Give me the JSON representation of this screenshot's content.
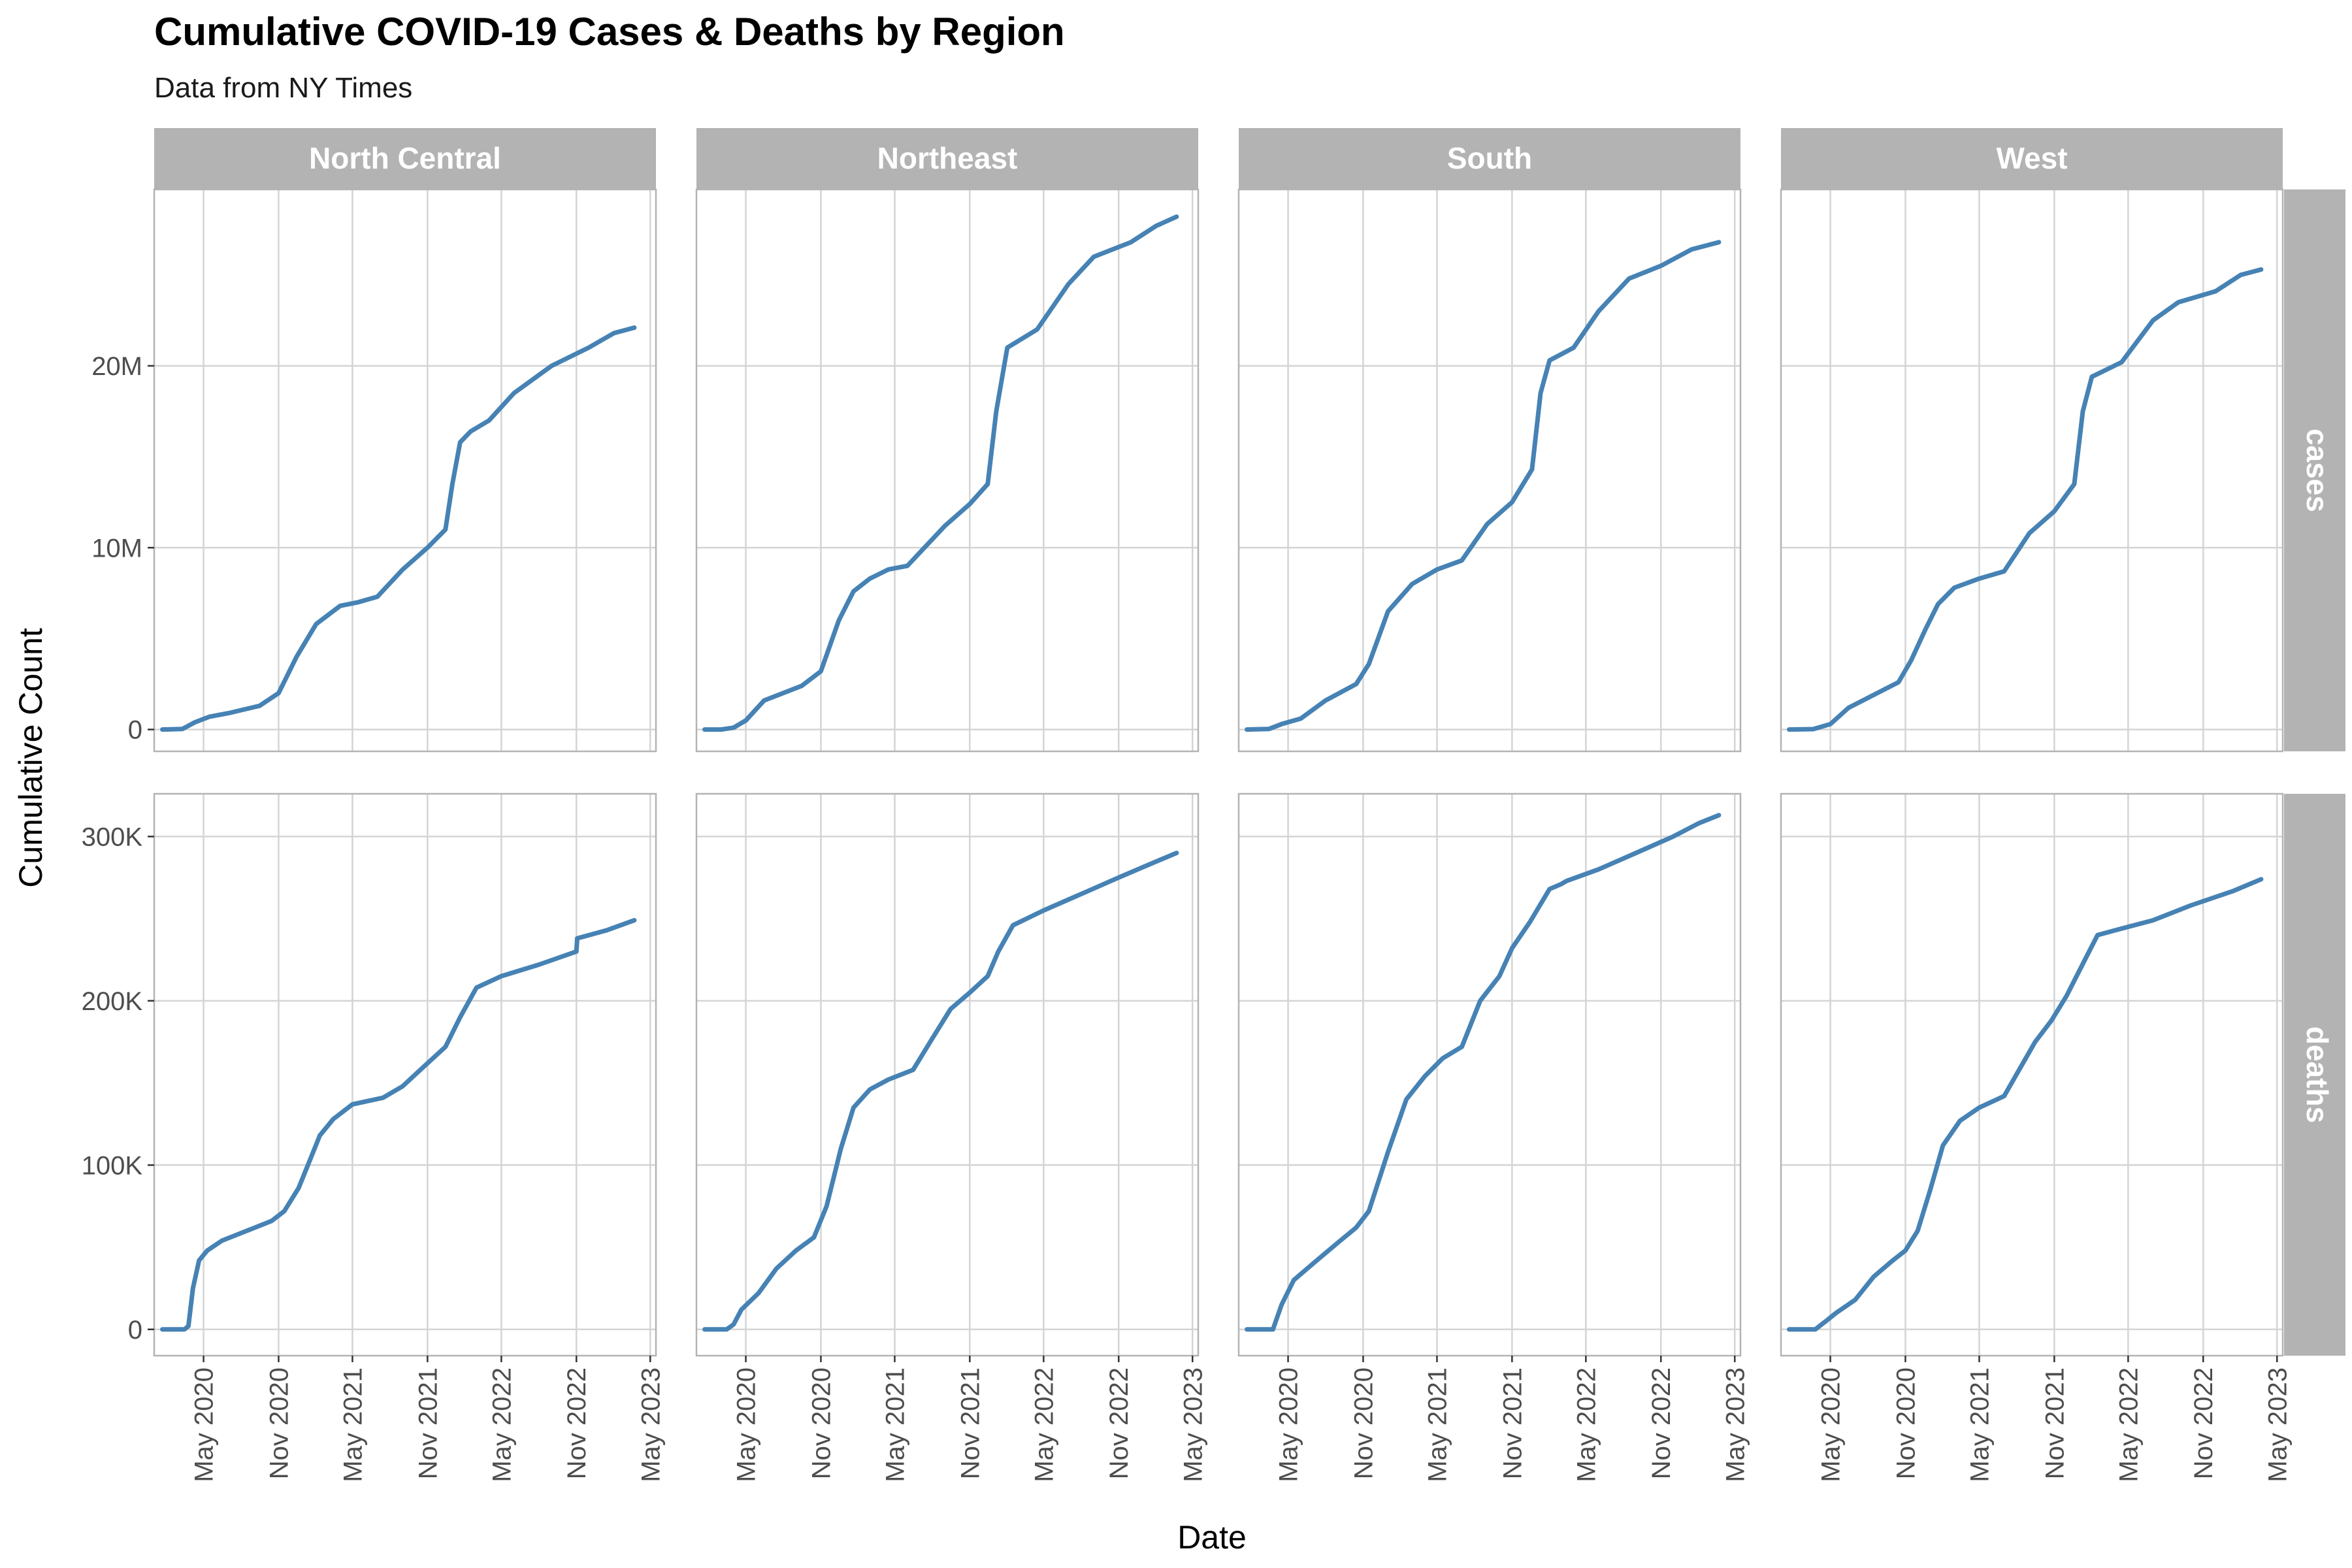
{
  "title": "Cumulative COVID-19 Cases & Deaths by Region",
  "subtitle": "Data from NY Times",
  "chart_data": {
    "type": "line",
    "xlabel": "Date",
    "ylabel": "Cumulative Count",
    "line_color": "#4682B4",
    "strip_color": "#B3B3B3",
    "grid": true,
    "x_ticks": [
      "2020-05-01",
      "2020-11-01",
      "2021-05-01",
      "2021-11-01",
      "2022-05-01",
      "2022-11-01",
      "2023-05-01"
    ],
    "x_tick_labels": [
      "May 2020",
      "Nov 2020",
      "May 2021",
      "Nov 2021",
      "May 2022",
      "Nov 2022",
      "May 2023"
    ],
    "xlim": [
      "2020-01-01",
      "2023-05-15"
    ],
    "columns": [
      "North Central",
      "Northeast",
      "South",
      "West"
    ],
    "rows": [
      {
        "name": "cases",
        "ylim": [
          -1200000,
          29700000
        ],
        "ticks": [
          0,
          10000000,
          20000000
        ],
        "tick_labels": [
          "0",
          "10M",
          "20M"
        ]
      },
      {
        "name": "deaths",
        "ylim": [
          -16000,
          326000
        ],
        "ticks": [
          0,
          100000,
          200000,
          300000
        ],
        "tick_labels": [
          "0",
          "100K",
          "200K",
          "300K"
        ]
      }
    ],
    "series": [
      {
        "region": "North Central",
        "metric": "cases",
        "x": [
          "2020-01-21",
          "2020-03-10",
          "2020-04-10",
          "2020-05-15",
          "2020-07-01",
          "2020-09-15",
          "2020-11-01",
          "2020-12-15",
          "2021-02-01",
          "2021-04-01",
          "2021-05-15",
          "2021-07-01",
          "2021-09-01",
          "2021-11-01",
          "2021-12-15",
          "2022-01-01",
          "2022-01-20",
          "2022-02-15",
          "2022-04-01",
          "2022-06-01",
          "2022-09-01",
          "2022-12-01",
          "2023-02-01",
          "2023-03-23"
        ],
        "y": [
          0,
          30000,
          400000,
          700000,
          900000,
          1300000,
          2000000,
          4000000,
          5800000,
          6800000,
          7000000,
          7300000,
          8800000,
          10000000,
          11000000,
          13500000,
          15800000,
          16400000,
          17000000,
          18500000,
          20000000,
          21000000,
          21800000,
          22100000
        ]
      },
      {
        "region": "Northeast",
        "metric": "cases",
        "x": [
          "2020-01-21",
          "2020-03-01",
          "2020-04-01",
          "2020-05-01",
          "2020-06-15",
          "2020-09-15",
          "2020-11-01",
          "2020-12-15",
          "2021-01-20",
          "2021-03-01",
          "2021-04-15",
          "2021-06-01",
          "2021-09-01",
          "2021-11-01",
          "2021-12-15",
          "2022-01-05",
          "2022-02-01",
          "2022-04-15",
          "2022-07-01",
          "2022-09-01",
          "2022-12-01",
          "2023-02-01",
          "2023-03-23"
        ],
        "y": [
          0,
          0,
          100000,
          500000,
          1600000,
          2400000,
          3200000,
          6000000,
          7600000,
          8300000,
          8800000,
          9000000,
          11200000,
          12400000,
          13500000,
          17500000,
          21000000,
          22000000,
          24500000,
          26000000,
          26800000,
          27700000,
          28200000
        ]
      },
      {
        "region": "South",
        "metric": "cases",
        "x": [
          "2020-01-21",
          "2020-03-15",
          "2020-04-15",
          "2020-06-01",
          "2020-08-01",
          "2020-10-15",
          "2020-11-15",
          "2021-01-01",
          "2021-03-01",
          "2021-05-01",
          "2021-07-01",
          "2021-09-01",
          "2021-11-01",
          "2021-12-20",
          "2022-01-10",
          "2022-02-01",
          "2022-04-01",
          "2022-06-01",
          "2022-08-15",
          "2022-11-01",
          "2023-01-15",
          "2023-03-23"
        ],
        "y": [
          0,
          30000,
          300000,
          600000,
          1600000,
          2500000,
          3600000,
          6500000,
          8000000,
          8800000,
          9300000,
          11300000,
          12500000,
          14300000,
          18500000,
          20300000,
          21000000,
          23000000,
          24800000,
          25500000,
          26400000,
          26800000
        ]
      },
      {
        "region": "West",
        "metric": "cases",
        "x": [
          "2020-01-21",
          "2020-03-20",
          "2020-05-01",
          "2020-06-15",
          "2020-08-15",
          "2020-10-15",
          "2020-11-15",
          "2020-12-20",
          "2021-01-20",
          "2021-03-01",
          "2021-05-01",
          "2021-07-01",
          "2021-09-01",
          "2021-11-01",
          "2021-12-20",
          "2022-01-10",
          "2022-02-01",
          "2022-04-15",
          "2022-07-01",
          "2022-09-01",
          "2022-12-01",
          "2023-02-01",
          "2023-03-23"
        ],
        "y": [
          0,
          20000,
          300000,
          1200000,
          1900000,
          2600000,
          3800000,
          5500000,
          6900000,
          7800000,
          8300000,
          8700000,
          10800000,
          12000000,
          13500000,
          17500000,
          19400000,
          20200000,
          22500000,
          23500000,
          24100000,
          25000000,
          25300000
        ]
      },
      {
        "region": "North Central",
        "metric": "deaths",
        "x": [
          "2020-01-21",
          "2020-03-15",
          "2020-03-25",
          "2020-04-05",
          "2020-04-20",
          "2020-05-10",
          "2020-06-15",
          "2020-08-15",
          "2020-10-15",
          "2020-11-15",
          "2020-12-20",
          "2021-01-20",
          "2021-02-10",
          "2021-03-15",
          "2021-05-01",
          "2021-07-15",
          "2021-09-01",
          "2021-11-01",
          "2021-12-15",
          "2022-01-20",
          "2022-03-01",
          "2022-05-01",
          "2022-08-01",
          "2022-11-01",
          "2022-11-03",
          "2023-01-15",
          "2023-03-23"
        ],
        "y": [
          0,
          0,
          2000,
          25000,
          42000,
          48000,
          54000,
          60000,
          66000,
          72000,
          86000,
          105000,
          118000,
          128000,
          137000,
          141000,
          148000,
          162000,
          172000,
          190000,
          208000,
          215000,
          222000,
          230000,
          238000,
          243000,
          249000
        ]
      },
      {
        "region": "Northeast",
        "metric": "deaths",
        "x": [
          "2020-01-21",
          "2020-03-15",
          "2020-04-01",
          "2020-04-20",
          "2020-06-01",
          "2020-07-15",
          "2020-09-01",
          "2020-10-15",
          "2020-11-15",
          "2020-12-20",
          "2021-01-20",
          "2021-03-01",
          "2021-04-15",
          "2021-06-15",
          "2021-08-01",
          "2021-09-15",
          "2021-11-01",
          "2021-12-15",
          "2022-01-10",
          "2022-02-15",
          "2022-05-01",
          "2022-08-01",
          "2022-11-01",
          "2023-01-15",
          "2023-03-23"
        ],
        "y": [
          0,
          0,
          3000,
          12000,
          22000,
          37000,
          48000,
          56000,
          75000,
          110000,
          135000,
          146000,
          152000,
          158000,
          177000,
          195000,
          205000,
          215000,
          230000,
          246000,
          255000,
          265000,
          275000,
          283000,
          290000
        ]
      },
      {
        "region": "South",
        "metric": "deaths",
        "x": [
          "2020-01-21",
          "2020-03-25",
          "2020-04-15",
          "2020-05-15",
          "2020-07-01",
          "2020-09-01",
          "2020-10-15",
          "2020-11-15",
          "2021-01-01",
          "2021-02-15",
          "2021-04-01",
          "2021-05-15",
          "2021-07-01",
          "2021-08-15",
          "2021-10-01",
          "2021-11-01",
          "2021-12-15",
          "2022-02-01",
          "2022-03-01",
          "2022-03-15",
          "2022-06-01",
          "2022-09-01",
          "2022-12-01",
          "2023-02-01",
          "2023-03-23"
        ],
        "y": [
          0,
          0,
          15000,
          30000,
          40000,
          53000,
          62000,
          72000,
          108000,
          140000,
          154000,
          165000,
          172000,
          200000,
          215000,
          232000,
          248000,
          268000,
          271000,
          273000,
          280000,
          290000,
          300000,
          308000,
          313000
        ]
      },
      {
        "region": "West",
        "metric": "deaths",
        "x": [
          "2020-01-21",
          "2020-03-25",
          "2020-04-20",
          "2020-05-15",
          "2020-07-01",
          "2020-08-15",
          "2020-10-01",
          "2020-11-01",
          "2020-12-01",
          "2021-01-01",
          "2021-02-01",
          "2021-03-15",
          "2021-05-01",
          "2021-07-01",
          "2021-09-15",
          "2021-10-25",
          "2021-12-01",
          "2022-01-15",
          "2022-02-15",
          "2022-04-15",
          "2022-07-01",
          "2022-10-01",
          "2023-01-15",
          "2023-03-23"
        ],
        "y": [
          0,
          0,
          5000,
          10000,
          18000,
          32000,
          42000,
          48000,
          60000,
          85000,
          112000,
          127000,
          135000,
          142000,
          175000,
          188000,
          203000,
          225000,
          240000,
          244000,
          249000,
          258000,
          267000,
          274000
        ]
      }
    ]
  }
}
